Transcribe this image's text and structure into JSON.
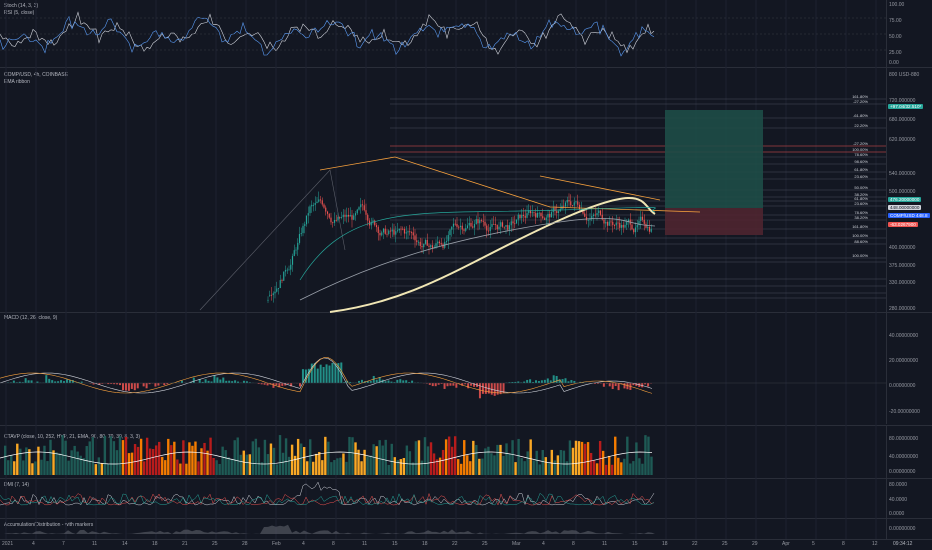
{
  "panes": {
    "stoch": {
      "label_stoch": "Stoch (14, 3, 3)",
      "label_rsi": "RSI (5, close)",
      "ticks": [
        "100.00",
        "75.00",
        "50.00",
        "25.00",
        "0.00"
      ]
    },
    "main": {
      "label_symbol": "COMP/USD, 4h, COINBASE",
      "label_ema": "EMA ribbon",
      "ticks": [
        "800 USD-880",
        "720.000000",
        "680.000000",
        "620.000000",
        "540.000000",
        "500.000000",
        "400.000000",
        "375.000000",
        "330.000000",
        "280.000000"
      ],
      "price_tags": [
        {
          "text": "+97.04/32.510*",
          "color": "#26a69a"
        },
        {
          "text": "476.20000000",
          "color": "#26a69a"
        },
        {
          "text": "448.00000000",
          "color": "#131722"
        },
        {
          "text": "COMP/USD 448.8",
          "color": "#2962ff"
        },
        {
          "text": "-63.0267900",
          "color": "#ef5350"
        }
      ],
      "fib_labels": [
        "161.80%",
        "-27.20%",
        "-61.80%",
        "22.20%",
        "-27.20%",
        "100.00%",
        "78.60%",
        "98.60%",
        "61.80%",
        "23.60%",
        "50.00%",
        "38.20%",
        "61.80%",
        "23.60%",
        "78.60%",
        "38.20%",
        "161.80%",
        "100.00%",
        "88.60%",
        "100.00%"
      ]
    },
    "macd": {
      "label": "MACD (12, 26, close, 9)",
      "ticks": [
        "40.00000000",
        "20.00000000",
        "0.00000000",
        "-20.00000000"
      ]
    },
    "cmvp": {
      "label": "CTAVP (close, 10, 252, HVP, 21, EMA, 90, 80, 70, 30, 8, 3, 3)",
      "ticks": [
        "80.00000000",
        "40.00000000",
        "0.00000000"
      ]
    },
    "dmi": {
      "label": "DMI (7, 14)",
      "ticks": [
        "80.0000",
        "40.0000",
        "0.0000"
      ]
    },
    "ad": {
      "label": "Accumulation/Distribution - with markers",
      "ticks": [
        "0.00000000"
      ]
    }
  },
  "x_axis": {
    "labels": [
      "2021",
      "4",
      "7",
      "11",
      "14",
      "18",
      "21",
      "25",
      "28",
      "Feb",
      "4",
      "8",
      "11",
      "15",
      "18",
      "22",
      "25",
      "Mar",
      "4",
      "8",
      "11",
      "15",
      "18",
      "22",
      "25",
      "29",
      "Apr",
      "5",
      "8",
      "12"
    ],
    "corner": "09:34:12"
  },
  "colors": {
    "up": "#26a69a",
    "down": "#ef5350",
    "bg": "#131722",
    "grid": "#2a2e39",
    "orange": "#f7a13d",
    "long_zone": "#1e4d47",
    "short_zone": "#4f2530"
  }
}
